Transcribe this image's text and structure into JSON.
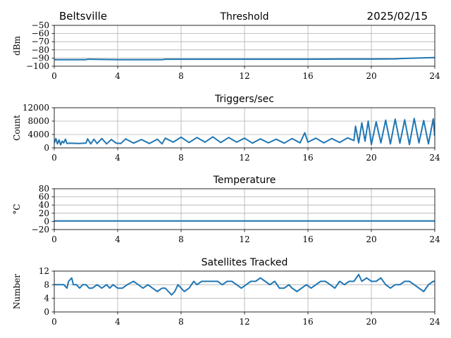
{
  "header": {
    "station": "Beltsville",
    "date": "2025/02/15"
  },
  "style": {
    "line_color": "#1f77b4",
    "grid_color": "#b0b0b0"
  },
  "chart_data": [
    {
      "type": "line",
      "title": "Threshold",
      "xlabel": "",
      "ylabel": "dBm",
      "xlim": [
        0,
        24
      ],
      "ylim": [
        -100,
        -50
      ],
      "xticks": [
        0,
        4,
        8,
        12,
        16,
        20,
        24
      ],
      "yticks": [
        -100,
        -90,
        -80,
        -70,
        -60,
        -50
      ],
      "ytick_labels": [
        "−100",
        "−90",
        "−80",
        "−70",
        "−60",
        "−50"
      ],
      "grid": true,
      "series": [
        {
          "x": [
            0,
            2,
            2.1,
            4,
            6.8,
            7,
            12,
            16,
            18,
            20,
            21.5,
            22,
            23,
            24
          ],
          "y": [
            -92,
            -92,
            -91.5,
            -92,
            -92,
            -91.5,
            -91.5,
            -91.5,
            -91.3,
            -91.3,
            -91,
            -90.5,
            -90,
            -89.5
          ]
        }
      ]
    },
    {
      "type": "line",
      "title": "Triggers/sec",
      "xlabel": "",
      "ylabel": "Count",
      "xlim": [
        0,
        24
      ],
      "ylim": [
        0,
        12000
      ],
      "xticks": [
        0,
        4,
        8,
        12,
        16,
        20,
        24
      ],
      "yticks": [
        0,
        4000,
        8000,
        12000
      ],
      "ytick_labels": [
        "0",
        "4000",
        "8000",
        "12000"
      ],
      "grid": true,
      "series": [
        {
          "x": [
            0,
            0.1,
            0.2,
            0.3,
            0.4,
            0.5,
            0.6,
            0.7,
            0.8,
            1.0,
            1.5,
            2.0,
            2.1,
            2.3,
            2.5,
            2.7,
            3.0,
            3.3,
            3.6,
            3.9,
            4.2,
            4.5,
            5.0,
            5.5,
            6.0,
            6.5,
            6.8,
            7.0,
            7.5,
            8.0,
            8.5,
            9.0,
            9.5,
            10.0,
            10.5,
            11.0,
            11.5,
            12.0,
            12.5,
            13.0,
            13.5,
            14.0,
            14.5,
            15.0,
            15.5,
            15.8,
            16.0,
            16.5,
            17.0,
            17.5,
            18.0,
            18.5,
            18.9,
            19.0,
            19.2,
            19.4,
            19.6,
            19.8,
            20.0,
            20.3,
            20.6,
            20.9,
            21.2,
            21.5,
            21.8,
            22.1,
            22.4,
            22.7,
            23.0,
            23.3,
            23.6,
            23.9,
            24.0
          ],
          "y": [
            1500,
            2800,
            1200,
            2400,
            900,
            2000,
            1500,
            2600,
            1300,
            1400,
            1300,
            1400,
            2700,
            1200,
            2600,
            1300,
            2800,
            1200,
            2500,
            1400,
            1300,
            2700,
            1400,
            2500,
            1300,
            2600,
            1200,
            2900,
            1700,
            3200,
            1600,
            3100,
            1700,
            3300,
            1600,
            3100,
            1700,
            2900,
            1400,
            2700,
            1500,
            2600,
            1400,
            2800,
            1500,
            4500,
            1700,
            2900,
            1500,
            2800,
            1600,
            3000,
            2200,
            6500,
            1500,
            7500,
            2000,
            8000,
            1000,
            7800,
            1500,
            8300,
            1200,
            8600,
            1400,
            8400,
            1000,
            8800,
            1500,
            8200,
            1200,
            8700,
            3500
          ]
        }
      ]
    },
    {
      "type": "line",
      "title": "Temperature",
      "xlabel": "",
      "ylabel": "°C",
      "xlim": [
        0,
        24
      ],
      "ylim": [
        -20,
        80
      ],
      "xticks": [
        0,
        4,
        8,
        12,
        16,
        20,
        24
      ],
      "yticks": [
        -20,
        0,
        20,
        40,
        60,
        80
      ],
      "ytick_labels": [
        "−20",
        "0",
        "20",
        "40",
        "60",
        "80"
      ],
      "grid": true,
      "series": [
        {
          "x": [
            0,
            24
          ],
          "y": [
            1,
            1
          ]
        }
      ]
    },
    {
      "type": "line",
      "title": "Satellites Tracked",
      "xlabel": "",
      "ylabel": "Number",
      "xlim": [
        0,
        24
      ],
      "ylim": [
        0,
        12
      ],
      "xticks": [
        0,
        4,
        8,
        12,
        16,
        20,
        24
      ],
      "yticks": [
        0,
        4,
        8,
        12
      ],
      "ytick_labels": [
        "0",
        "4",
        "8",
        "12"
      ],
      "grid": true,
      "series": [
        {
          "x": [
            0,
            0.6,
            0.8,
            0.9,
            1.1,
            1.2,
            1.4,
            1.6,
            1.8,
            2.0,
            2.2,
            2.4,
            2.7,
            3.0,
            3.3,
            3.5,
            3.7,
            4.0,
            4.3,
            4.6,
            5.0,
            5.3,
            5.6,
            5.9,
            6.2,
            6.5,
            6.8,
            7.0,
            7.2,
            7.4,
            7.6,
            7.8,
            8.0,
            8.2,
            8.5,
            8.8,
            9.0,
            9.3,
            9.6,
            10.0,
            10.3,
            10.6,
            10.9,
            11.2,
            11.5,
            11.8,
            12.1,
            12.4,
            12.7,
            13.0,
            13.3,
            13.6,
            13.9,
            14.2,
            14.5,
            14.8,
            15.0,
            15.3,
            15.6,
            15.9,
            16.2,
            16.5,
            16.8,
            17.1,
            17.4,
            17.7,
            18.0,
            18.3,
            18.6,
            18.9,
            19.2,
            19.4,
            19.7,
            20.0,
            20.3,
            20.6,
            20.9,
            21.2,
            21.5,
            21.8,
            22.1,
            22.4,
            22.7,
            23.0,
            23.3,
            23.6,
            23.9,
            24.0
          ],
          "y": [
            8,
            8,
            7,
            9,
            10,
            8,
            8,
            7,
            8,
            8,
            7,
            7,
            8,
            7,
            8,
            7,
            8,
            7,
            7,
            8,
            9,
            8,
            7,
            8,
            7,
            6,
            7,
            7,
            6,
            5,
            6,
            8,
            7,
            6,
            7,
            9,
            8,
            9,
            9,
            9,
            9,
            8,
            9,
            9,
            8,
            7,
            8,
            9,
            9,
            10,
            9,
            8,
            9,
            7,
            7,
            8,
            7,
            6,
            7,
            8,
            7,
            8,
            9,
            9,
            8,
            7,
            9,
            8,
            9,
            9,
            11,
            9,
            10,
            9,
            9,
            10,
            8,
            7,
            8,
            8,
            9,
            9,
            8,
            7,
            6,
            8,
            9,
            9
          ]
        }
      ]
    }
  ]
}
